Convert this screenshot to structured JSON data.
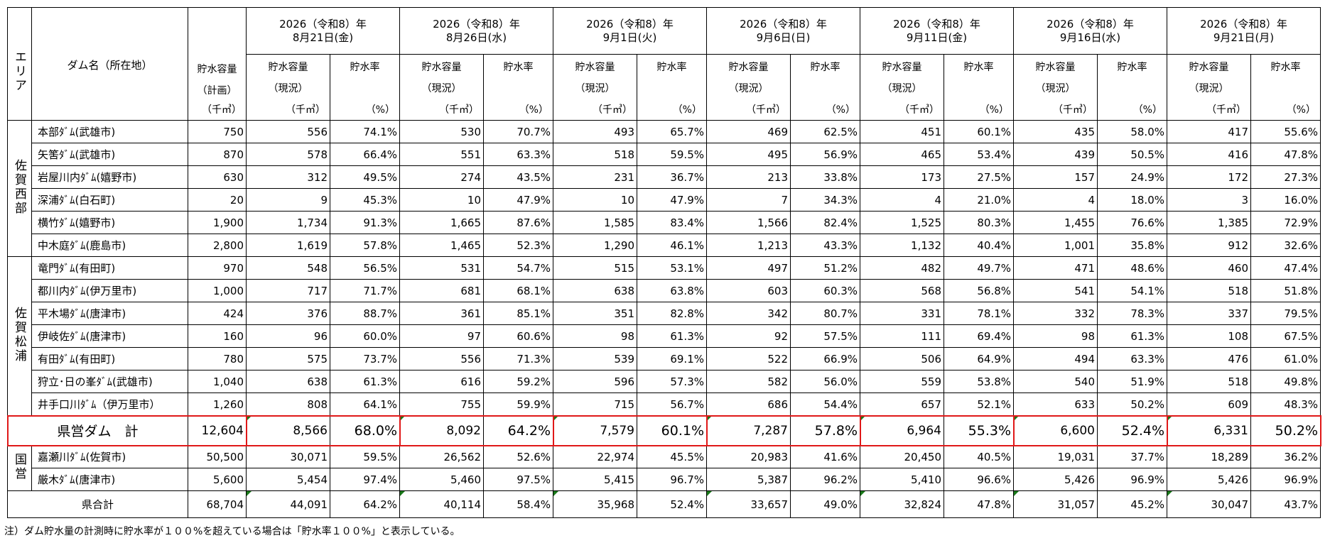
{
  "header": {
    "area_label": "エリア",
    "dam_label": "ダム名（所在地）",
    "cap_plan_l1": "貯水容量",
    "cap_plan_l2": "（計画）",
    "cap_plan_unit": "（千㎥）",
    "cap_now_l1": "貯水容量",
    "cap_now_l2": "（現況）",
    "cap_now_unit": "（千㎥）",
    "rate_label": "貯水率",
    "rate_unit": "（%）",
    "dates": [
      {
        "year": "2026（令和8）年",
        "day": "8月21日(金)"
      },
      {
        "year": "2026（令和8）年",
        "day": "8月26日(水)"
      },
      {
        "year": "2026（令和8）年",
        "day": "9月1日(火)"
      },
      {
        "year": "2026（令和8）年",
        "day": "9月6日(日)"
      },
      {
        "year": "2026（令和8）年",
        "day": "9月11日(金)"
      },
      {
        "year": "2026（令和8）年",
        "day": "9月16日(水)"
      },
      {
        "year": "2026（令和8）年",
        "day": "9月21日(月)"
      }
    ]
  },
  "areas": {
    "saga_west": "佐賀西部",
    "saga_matsuura": "佐賀松浦",
    "national": "国営"
  },
  "rows": [
    {
      "name": "本部ﾀﾞﾑ(武雄市)",
      "plan": "750",
      "values": [
        [
          "556",
          "74.1%"
        ],
        [
          "530",
          "70.7%"
        ],
        [
          "493",
          "65.7%"
        ],
        [
          "469",
          "62.5%"
        ],
        [
          "451",
          "60.1%"
        ],
        [
          "435",
          "58.0%"
        ],
        [
          "417",
          "55.6%"
        ]
      ]
    },
    {
      "name": "矢筈ﾀﾞﾑ(武雄市)",
      "plan": "870",
      "values": [
        [
          "578",
          "66.4%"
        ],
        [
          "551",
          "63.3%"
        ],
        [
          "518",
          "59.5%"
        ],
        [
          "495",
          "56.9%"
        ],
        [
          "465",
          "53.4%"
        ],
        [
          "439",
          "50.5%"
        ],
        [
          "416",
          "47.8%"
        ]
      ]
    },
    {
      "name": "岩屋川内ﾀﾞﾑ(嬉野市)",
      "plan": "630",
      "values": [
        [
          "312",
          "49.5%"
        ],
        [
          "274",
          "43.5%"
        ],
        [
          "231",
          "36.7%"
        ],
        [
          "213",
          "33.8%"
        ],
        [
          "173",
          "27.5%"
        ],
        [
          "157",
          "24.9%"
        ],
        [
          "172",
          "27.3%"
        ]
      ]
    },
    {
      "name": "深浦ﾀﾞﾑ(白石町)",
      "plan": "20",
      "values": [
        [
          "9",
          "45.3%"
        ],
        [
          "10",
          "47.9%"
        ],
        [
          "10",
          "47.9%"
        ],
        [
          "7",
          "34.3%"
        ],
        [
          "4",
          "21.0%"
        ],
        [
          "4",
          "18.0%"
        ],
        [
          "3",
          "16.0%"
        ]
      ]
    },
    {
      "name": "横竹ﾀﾞﾑ(嬉野市)",
      "plan": "1,900",
      "values": [
        [
          "1,734",
          "91.3%"
        ],
        [
          "1,665",
          "87.6%"
        ],
        [
          "1,585",
          "83.4%"
        ],
        [
          "1,566",
          "82.4%"
        ],
        [
          "1,525",
          "80.3%"
        ],
        [
          "1,455",
          "76.6%"
        ],
        [
          "1,385",
          "72.9%"
        ]
      ]
    },
    {
      "name": "中木庭ﾀﾞﾑ(鹿島市)",
      "plan": "2,800",
      "values": [
        [
          "1,619",
          "57.8%"
        ],
        [
          "1,465",
          "52.3%"
        ],
        [
          "1,290",
          "46.1%"
        ],
        [
          "1,213",
          "43.3%"
        ],
        [
          "1,132",
          "40.4%"
        ],
        [
          "1,001",
          "35.8%"
        ],
        [
          "912",
          "32.6%"
        ]
      ]
    },
    {
      "name": "竜門ﾀﾞﾑ(有田町)",
      "plan": "970",
      "values": [
        [
          "548",
          "56.5%"
        ],
        [
          "531",
          "54.7%"
        ],
        [
          "515",
          "53.1%"
        ],
        [
          "497",
          "51.2%"
        ],
        [
          "482",
          "49.7%"
        ],
        [
          "471",
          "48.6%"
        ],
        [
          "460",
          "47.4%"
        ]
      ]
    },
    {
      "name": "都川内ﾀﾞﾑ(伊万里市)",
      "plan": "1,000",
      "values": [
        [
          "717",
          "71.7%"
        ],
        [
          "681",
          "68.1%"
        ],
        [
          "638",
          "63.8%"
        ],
        [
          "603",
          "60.3%"
        ],
        [
          "568",
          "56.8%"
        ],
        [
          "541",
          "54.1%"
        ],
        [
          "518",
          "51.8%"
        ]
      ]
    },
    {
      "name": "平木場ﾀﾞﾑ(唐津市)",
      "plan": "424",
      "values": [
        [
          "376",
          "88.7%"
        ],
        [
          "361",
          "85.1%"
        ],
        [
          "351",
          "82.8%"
        ],
        [
          "342",
          "80.7%"
        ],
        [
          "331",
          "78.1%"
        ],
        [
          "332",
          "78.3%"
        ],
        [
          "337",
          "79.5%"
        ]
      ]
    },
    {
      "name": "伊岐佐ﾀﾞﾑ(唐津市)",
      "plan": "160",
      "values": [
        [
          "96",
          "60.0%"
        ],
        [
          "97",
          "60.6%"
        ],
        [
          "98",
          "61.3%"
        ],
        [
          "92",
          "57.5%"
        ],
        [
          "111",
          "69.4%"
        ],
        [
          "98",
          "61.3%"
        ],
        [
          "108",
          "67.5%"
        ]
      ]
    },
    {
      "name": "有田ﾀﾞﾑ(有田町)",
      "plan": "780",
      "values": [
        [
          "575",
          "73.7%"
        ],
        [
          "556",
          "71.3%"
        ],
        [
          "539",
          "69.1%"
        ],
        [
          "522",
          "66.9%"
        ],
        [
          "506",
          "64.9%"
        ],
        [
          "494",
          "63.3%"
        ],
        [
          "476",
          "61.0%"
        ]
      ]
    },
    {
      "name": "狩立･日の峯ﾀﾞﾑ(武雄市)",
      "plan": "1,040",
      "values": [
        [
          "638",
          "61.3%"
        ],
        [
          "616",
          "59.2%"
        ],
        [
          "596",
          "57.3%"
        ],
        [
          "582",
          "56.0%"
        ],
        [
          "559",
          "53.8%"
        ],
        [
          "540",
          "51.9%"
        ],
        [
          "518",
          "49.8%"
        ]
      ]
    },
    {
      "name": "井手口川ﾀﾞﾑ（伊万里市）",
      "plan": "1,260",
      "values": [
        [
          "808",
          "64.1%"
        ],
        [
          "755",
          "59.9%"
        ],
        [
          "715",
          "56.7%"
        ],
        [
          "686",
          "54.4%"
        ],
        [
          "657",
          "52.1%"
        ],
        [
          "633",
          "50.2%"
        ],
        [
          "609",
          "48.3%"
        ]
      ]
    }
  ],
  "kenei_total": {
    "label": "県営ダム　計",
    "plan": "12,604",
    "values": [
      [
        "8,566",
        "68.0%"
      ],
      [
        "8,092",
        "64.2%"
      ],
      [
        "7,579",
        "60.1%"
      ],
      [
        "7,287",
        "57.8%"
      ],
      [
        "6,964",
        "55.3%"
      ],
      [
        "6,600",
        "52.4%"
      ],
      [
        "6,331",
        "50.2%"
      ]
    ]
  },
  "national_rows": [
    {
      "name": "嘉瀬川ﾀﾞﾑ(佐賀市)",
      "plan": "50,500",
      "values": [
        [
          "30,071",
          "59.5%"
        ],
        [
          "26,562",
          "52.6%"
        ],
        [
          "22,974",
          "45.5%"
        ],
        [
          "20,983",
          "41.6%"
        ],
        [
          "20,450",
          "40.5%"
        ],
        [
          "19,031",
          "37.7%"
        ],
        [
          "18,289",
          "36.2%"
        ]
      ]
    },
    {
      "name": "厳木ﾀﾞﾑ(唐津市)",
      "plan": "5,600",
      "values": [
        [
          "5,454",
          "97.4%"
        ],
        [
          "5,460",
          "97.5%"
        ],
        [
          "5,415",
          "96.7%"
        ],
        [
          "5,387",
          "96.2%"
        ],
        [
          "5,410",
          "96.6%"
        ],
        [
          "5,426",
          "96.9%"
        ],
        [
          "5,426",
          "96.9%"
        ]
      ]
    }
  ],
  "pref_total": {
    "label": "県合計",
    "plan": "68,704",
    "values": [
      [
        "44,091",
        "64.2%"
      ],
      [
        "40,114",
        "58.4%"
      ],
      [
        "35,968",
        "52.4%"
      ],
      [
        "33,657",
        "49.0%"
      ],
      [
        "32,824",
        "47.8%"
      ],
      [
        "31,057",
        "45.2%"
      ],
      [
        "30,047",
        "43.7%"
      ]
    ]
  },
  "note": "注）ダム貯水量の計測時に貯水率が１００%を超えている場合は「貯水率１００%」と表示している。",
  "colors": {
    "highlight_border": "#e01818",
    "cell_marker": "#1a7a1a"
  }
}
